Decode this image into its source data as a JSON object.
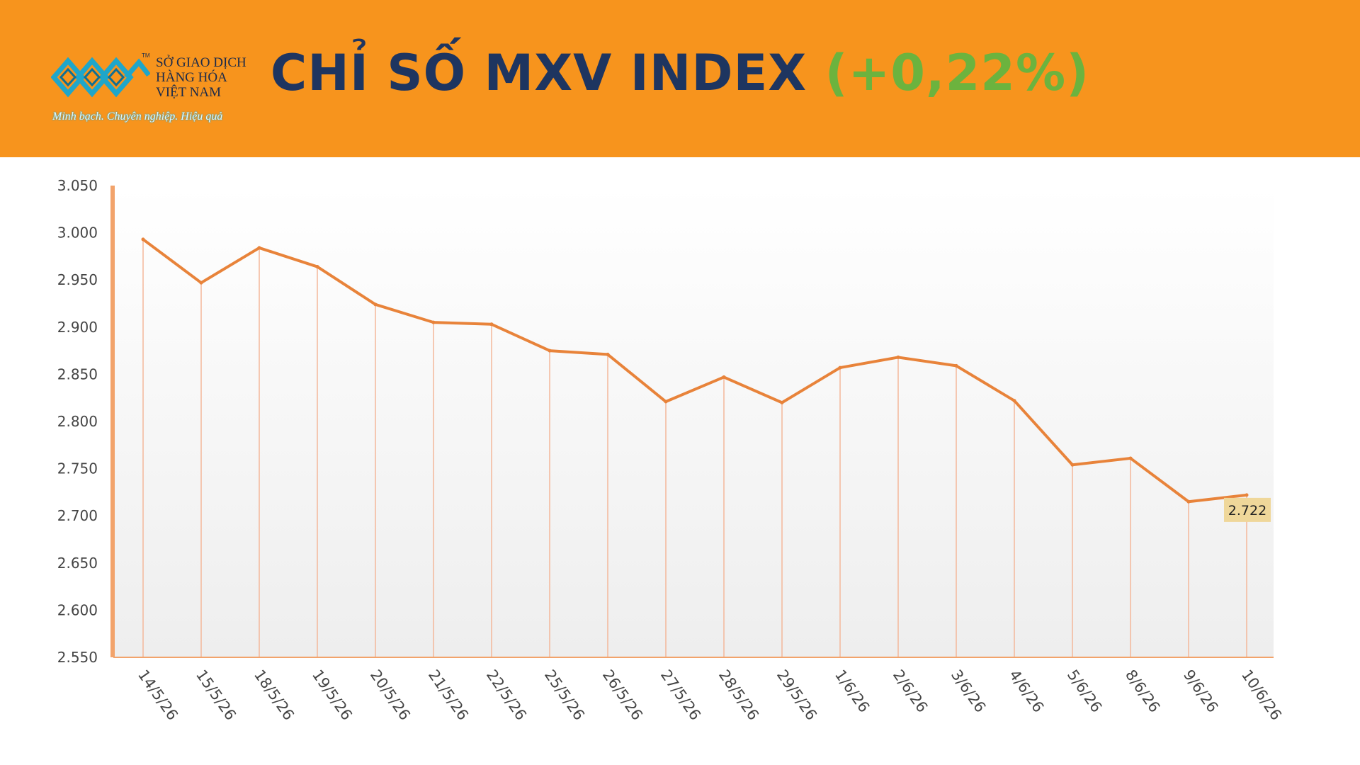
{
  "header": {
    "title_main": "CHỈ SỐ MXV INDEX",
    "title_change": "(+0,22%)",
    "logo": {
      "name_lines": [
        "SỞ GIAO DỊCH",
        "HÀNG HÓA",
        "VIỆT NAM"
      ],
      "trademark": "TM",
      "slogan": "Minh bạch. Chuyên nghiệp. Hiệu quả"
    },
    "colors": {
      "banner": "#f7941d",
      "title": "#1e3560",
      "change": "#6cb33e",
      "logo_blue": "#1fa6c9"
    }
  },
  "chart_data": {
    "type": "line",
    "title": "CHỈ SỐ MXV INDEX (+0,22%)",
    "categories": [
      "14/5/26",
      "15/5/26",
      "18/5/26",
      "19/5/26",
      "20/5/26",
      "21/5/26",
      "22/5/26",
      "25/5/26",
      "26/5/26",
      "27/5/26",
      "28/5/26",
      "29/5/26",
      "1/6/26",
      "2/6/26",
      "3/6/26",
      "4/6/26",
      "5/6/26",
      "8/6/26",
      "9/6/26",
      "10/6/26"
    ],
    "series": [
      {
        "values": [
          2993,
          2947,
          2984,
          2964,
          2924,
          2905,
          2903,
          2875,
          2871,
          2821,
          2847,
          2820,
          2857,
          2868,
          2859,
          2822,
          2754,
          2761,
          2715,
          2722
        ],
        "color": "#e8833a"
      }
    ],
    "y_ticks": [
      "3.050",
      "3.000",
      "2.950",
      "2.900",
      "2.850",
      "2.800",
      "2.750",
      "2.700",
      "2.650",
      "2.600",
      "2.550"
    ],
    "ylim": [
      2550,
      3050
    ],
    "last_label": "2.722",
    "drop_lines": true,
    "grid": false,
    "colors": {
      "line": "#e8833a",
      "drop_line": "#f4b79a",
      "axis": "#f2a36b",
      "label_bg": "#efd79a"
    }
  }
}
